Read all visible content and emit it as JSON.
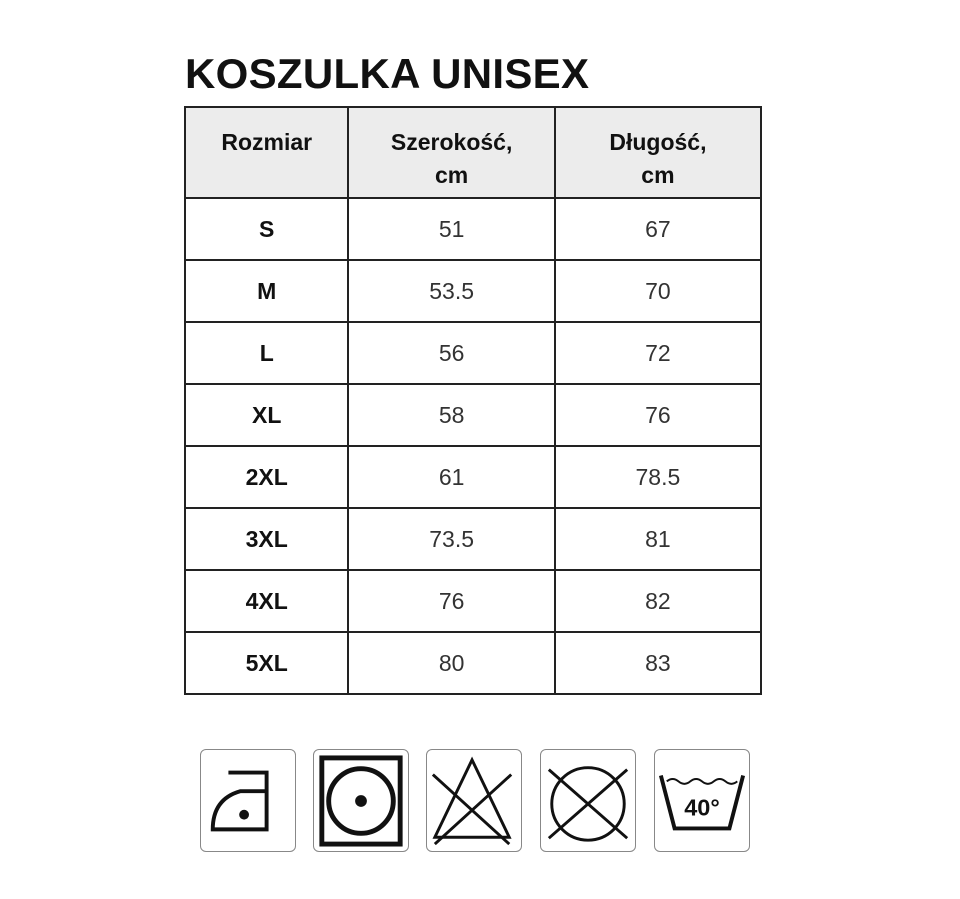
{
  "title": "KOSZULKA UNISEX",
  "table": {
    "headers": [
      "Rozmiar",
      "Szerokość,\ncm",
      "Długość,\ncm"
    ],
    "rows": [
      [
        "S",
        "51",
        "67"
      ],
      [
        "M",
        "53.5",
        "70"
      ],
      [
        "L",
        "56",
        "72"
      ],
      [
        "XL",
        "58",
        "76"
      ],
      [
        "2XL",
        "61",
        "78.5"
      ],
      [
        "3XL",
        "73.5",
        "81"
      ],
      [
        "4XL",
        "76",
        "82"
      ],
      [
        "5XL",
        "80",
        "83"
      ]
    ]
  },
  "care_icons": [
    {
      "icon": "iron-low-heat-icon"
    },
    {
      "icon": "tumble-dry-icon"
    },
    {
      "icon": "do-not-bleach-icon"
    },
    {
      "icon": "do-not-dry-clean-icon"
    },
    {
      "icon": "wash-40-icon",
      "label": "40°"
    }
  ]
}
